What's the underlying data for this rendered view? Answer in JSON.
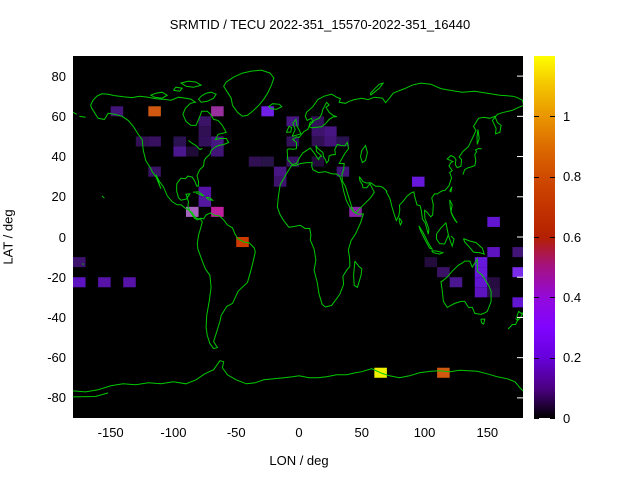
{
  "title": "SRMTID / TECU 2022-351_15570-2022-351_16440",
  "axes": {
    "x_label": "LON / deg",
    "y_label": "LAT / deg",
    "x_ticks": [
      -150,
      -100,
      -50,
      0,
      50,
      100,
      150
    ],
    "y_ticks": [
      80,
      60,
      40,
      20,
      0,
      -20,
      -40,
      -60,
      -80
    ],
    "x_range": [
      -180,
      180
    ],
    "y_range": [
      -90,
      90
    ]
  },
  "colorbar": {
    "tick_labels": [
      "0",
      "0.2",
      "0.4",
      "0.6",
      "0.8",
      "1"
    ],
    "tick_values": [
      0,
      0.2,
      0.4,
      0.6,
      0.8,
      1
    ],
    "range": [
      0,
      1.2
    ],
    "palette": "gnuplot default (black-violet-red-yellow)"
  },
  "colors": {
    "page_background": "#ffffff",
    "plot_background": "#000000",
    "coastline": "#00c800",
    "text": "#000000",
    "right_border": "#ffffff"
  },
  "chart_data": {
    "type": "heatmap",
    "title": "SRMTID / TECU 2022-351_15570-2022-351_16440",
    "xlabel": "LON / deg",
    "ylabel": "LAT / deg",
    "units": "TECU",
    "xlim": [
      -180,
      180
    ],
    "ylim": [
      -90,
      90
    ],
    "colorbar_range": [
      0,
      1.2
    ],
    "cell_size_deg": {
      "lon": 10,
      "lat": 5
    },
    "cells": [
      {
        "lon": -150,
        "lat": 65,
        "value": 0.15,
        "color": "#421478"
      },
      {
        "lon": -120,
        "lat": 65,
        "value": 0.75,
        "color": "#d05810"
      },
      {
        "lon": -70,
        "lat": 65,
        "value": 0.45,
        "color": "#9a2f9e"
      },
      {
        "lon": -30,
        "lat": 65,
        "value": 0.27,
        "color": "#6f1fe8"
      },
      {
        "lon": -10,
        "lat": 60,
        "value": 0.16,
        "color": "#471682"
      },
      {
        "lon": -80,
        "lat": 60,
        "value": 0.13,
        "color": "#3a1266"
      },
      {
        "lon": -80,
        "lat": 55,
        "value": 0.1,
        "color": "#300f52"
      },
      {
        "lon": -130,
        "lat": 50,
        "value": 0.1,
        "color": "#300f52"
      },
      {
        "lon": -120,
        "lat": 50,
        "value": 0.12,
        "color": "#371160"
      },
      {
        "lon": -100,
        "lat": 50,
        "value": 0.08,
        "color": "#2a1250"
      },
      {
        "lon": -80,
        "lat": 50,
        "value": 0.11,
        "color": "#33105a"
      },
      {
        "lon": -70,
        "lat": 50,
        "value": 0.16,
        "color": "#471682"
      },
      {
        "lon": -100,
        "lat": 45,
        "value": 0.17,
        "color": "#4b178e"
      },
      {
        "lon": -90,
        "lat": 45,
        "value": 0.05,
        "color": "#200a38"
      },
      {
        "lon": -70,
        "lat": 45,
        "value": 0.15,
        "color": "#421478"
      },
      {
        "lon": -120,
        "lat": 35,
        "value": 0.13,
        "color": "#3a1266"
      },
      {
        "lon": -40,
        "lat": 40,
        "value": 0.1,
        "color": "#300f52"
      },
      {
        "lon": -30,
        "lat": 40,
        "value": 0.08,
        "color": "#281448"
      },
      {
        "lon": -20,
        "lat": 35,
        "value": 0.16,
        "color": "#471682"
      },
      {
        "lon": -20,
        "lat": 30,
        "value": 0.14,
        "color": "#3e136e"
      },
      {
        "lon": -10,
        "lat": 50,
        "value": 0.11,
        "color": "#33105a"
      },
      {
        "lon": -10,
        "lat": 40,
        "value": 0.12,
        "color": "#371160"
      },
      {
        "lon": 10,
        "lat": 60,
        "value": 0.11,
        "color": "#33105a"
      },
      {
        "lon": 10,
        "lat": 55,
        "value": 0.14,
        "color": "#3e136e"
      },
      {
        "lon": 10,
        "lat": 50,
        "value": 0.1,
        "color": "#300f52"
      },
      {
        "lon": 10,
        "lat": 40,
        "value": 0.06,
        "color": "#230b3c"
      },
      {
        "lon": 20,
        "lat": 55,
        "value": 0.16,
        "color": "#471682"
      },
      {
        "lon": 20,
        "lat": 50,
        "value": 0.15,
        "color": "#421478"
      },
      {
        "lon": 30,
        "lat": 50,
        "value": 0.08,
        "color": "#2a1250"
      },
      {
        "lon": 30,
        "lat": 35,
        "value": 0.15,
        "color": "#421478"
      },
      {
        "lon": -80,
        "lat": 25,
        "value": 0.2,
        "color": "#5712a8"
      },
      {
        "lon": -80,
        "lat": 20,
        "value": 0.19,
        "color": "#53189e"
      },
      {
        "lon": -90,
        "lat": 15,
        "value": 0.5,
        "color": "#a865c0"
      },
      {
        "lon": -70,
        "lat": 15,
        "value": 0.5,
        "color": "#c020a0"
      },
      {
        "lon": -50,
        "lat": 0,
        "value": 0.65,
        "color": "#cc3a00"
      },
      {
        "lon": 40,
        "lat": 15,
        "value": 0.4,
        "color": "#8b21a8"
      },
      {
        "lon": 90,
        "lat": 30,
        "value": 0.25,
        "color": "#6718da"
      },
      {
        "lon": 150,
        "lat": 10,
        "value": 0.24,
        "color": "#6316d2"
      },
      {
        "lon": -180,
        "lat": -10,
        "value": 0.14,
        "color": "#3e136e"
      },
      {
        "lon": -180,
        "lat": -20,
        "value": 0.22,
        "color": "#5d13c0"
      },
      {
        "lon": -160,
        "lat": -20,
        "value": 0.2,
        "color": "#5712a8"
      },
      {
        "lon": -140,
        "lat": -20,
        "value": 0.2,
        "color": "#5712a8"
      },
      {
        "lon": 100,
        "lat": -10,
        "value": 0.06,
        "color": "#230b3c"
      },
      {
        "lon": 150,
        "lat": -5,
        "value": 0.22,
        "color": "#5d13c0"
      },
      {
        "lon": 170,
        "lat": -5,
        "value": 0.15,
        "color": "#421478"
      },
      {
        "lon": 110,
        "lat": -15,
        "value": 0.13,
        "color": "#3a1266"
      },
      {
        "lon": 140,
        "lat": -10,
        "value": 0.25,
        "color": "#6718da"
      },
      {
        "lon": 140,
        "lat": -15,
        "value": 0.25,
        "color": "#6718da"
      },
      {
        "lon": 170,
        "lat": -15,
        "value": 0.28,
        "color": "#7a2bea"
      },
      {
        "lon": 120,
        "lat": -20,
        "value": 0.17,
        "color": "#4b178e"
      },
      {
        "lon": 140,
        "lat": -20,
        "value": 0.24,
        "color": "#6316d2"
      },
      {
        "lon": 150,
        "lat": -20,
        "value": 0.07,
        "color": "#260c40"
      },
      {
        "lon": 140,
        "lat": -25,
        "value": 0.22,
        "color": "#5d13c0"
      },
      {
        "lon": 150,
        "lat": -25,
        "value": 0.08,
        "color": "#2a0e46"
      },
      {
        "lon": 170,
        "lat": -30,
        "value": 0.24,
        "color": "#6316d2"
      },
      {
        "lon": 60,
        "lat": -65,
        "value": 1.15,
        "color": "#f0f000"
      },
      {
        "lon": 110,
        "lat": -65,
        "value": 0.75,
        "color": "#d05810"
      }
    ]
  }
}
